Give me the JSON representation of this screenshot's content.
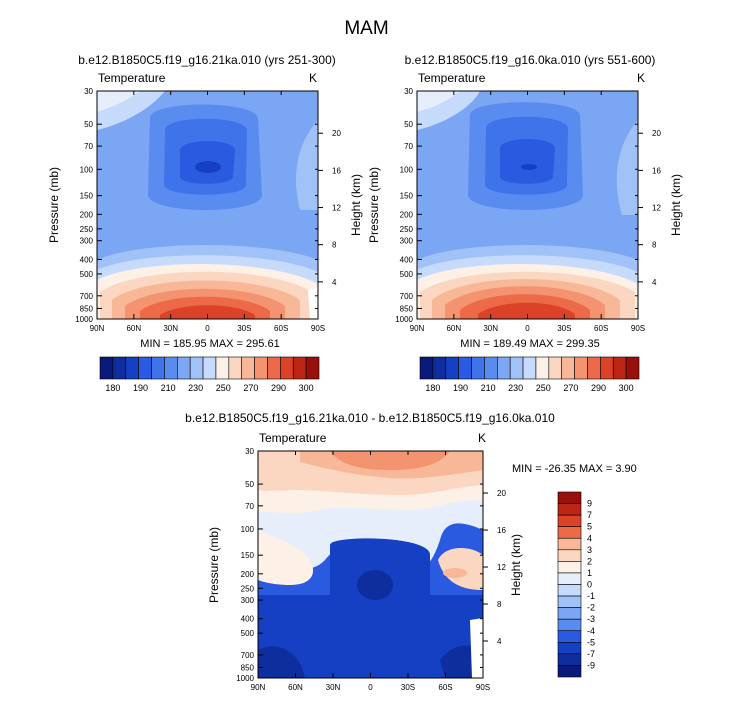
{
  "figure": {
    "title": "MAM"
  },
  "colors": {
    "fill_scale": [
      "#0a1a7a",
      "#0f2e9e",
      "#1540c4",
      "#2a5ae0",
      "#3f73ea",
      "#5a8cf0",
      "#7aa6f4",
      "#a0c2f8",
      "#c6dafb",
      "#fdf0e6",
      "#fbd7c2",
      "#f8b897",
      "#f39370",
      "#ec6a48",
      "#dc4228",
      "#bd2414",
      "#98100a"
    ],
    "diff_scale": [
      "#0a1a7a",
      "#0f2e9e",
      "#1540c4",
      "#2a5ae0",
      "#3f73ea",
      "#5a8cf0",
      "#7aa6f4",
      "#a0c2f8",
      "#c6dafb",
      "#e6eefc",
      "#fdf0e6",
      "#fbd7c2",
      "#f8b897",
      "#f39370",
      "#ec6a48",
      "#dc4228",
      "#bd2414",
      "#98100a"
    ]
  },
  "chart_data": [
    {
      "id": "panel1",
      "type": "contour",
      "title": "b.e12.B1850C5.f19_g16.21ka.010 (yrs 251-300)",
      "left_label": "Temperature",
      "right_label": "K",
      "xlabel": "",
      "ylabel": "Pressure (mb)",
      "ylabel_right": "Height (km)",
      "x_ticks": [
        "90N",
        "60N",
        "30N",
        "0",
        "30S",
        "60S",
        "90S"
      ],
      "y_ticks": [
        "30",
        "50",
        "70",
        "100",
        "150",
        "200",
        "250",
        "300",
        "400",
        "500",
        "700",
        "850",
        "1000"
      ],
      "height_ticks": [
        "20",
        "16",
        "12",
        "8",
        "4"
      ],
      "stats": "MIN = 185.95  MAX = 295.61",
      "colorbar_ticks": [
        "180",
        "190",
        "210",
        "230",
        "250",
        "270",
        "290",
        "300"
      ]
    },
    {
      "id": "panel2",
      "type": "contour",
      "title": "b.e12.B1850C5.f19_g16.0ka.010 (yrs 551-600)",
      "left_label": "Temperature",
      "right_label": "K",
      "xlabel": "",
      "ylabel": "Pressure (mb)",
      "ylabel_right": "Height (km)",
      "x_ticks": [
        "90N",
        "60N",
        "30N",
        "0",
        "30S",
        "60S",
        "90S"
      ],
      "y_ticks": [
        "30",
        "50",
        "70",
        "100",
        "150",
        "200",
        "250",
        "300",
        "400",
        "500",
        "700",
        "850",
        "1000"
      ],
      "height_ticks": [
        "20",
        "16",
        "12",
        "8",
        "4"
      ],
      "stats": "MIN = 189.49  MAX = 299.35",
      "colorbar_ticks": [
        "180",
        "190",
        "210",
        "230",
        "250",
        "270",
        "290",
        "300"
      ]
    },
    {
      "id": "panel3",
      "type": "contour",
      "title": "b.e12.B1850C5.f19_g16.21ka.010 - b.e12.B1850C5.f19_g16.0ka.010",
      "left_label": "Temperature",
      "right_label": "K",
      "xlabel": "",
      "ylabel": "Pressure (mb)",
      "ylabel_right": "Height (km)",
      "x_ticks": [
        "90N",
        "60N",
        "30N",
        "0",
        "30S",
        "60S",
        "90S"
      ],
      "y_ticks": [
        "30",
        "50",
        "70",
        "100",
        "150",
        "200",
        "250",
        "300",
        "400",
        "500",
        "700",
        "850",
        "1000"
      ],
      "height_ticks": [
        "20",
        "16",
        "12",
        "8",
        "4"
      ],
      "stats": "MIN = -26.35  MAX =   3.90",
      "colorbar_ticks": [
        "9",
        "7",
        "5",
        "4",
        "3",
        "2",
        "1",
        "0",
        "-1",
        "-2",
        "-3",
        "-4",
        "-5",
        "-7",
        "-9"
      ]
    }
  ]
}
